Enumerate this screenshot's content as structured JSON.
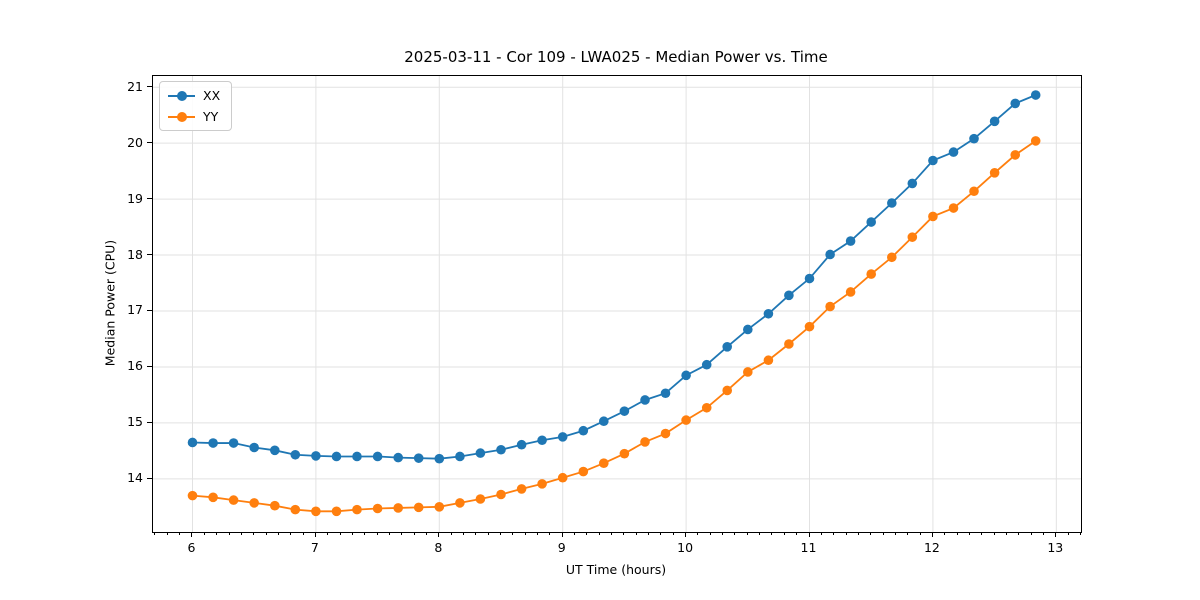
{
  "chart_data": {
    "type": "line",
    "title": "2025-03-11 - Cor 109 - LWA025 - Median Power vs. Time",
    "xlabel": "UT Time (hours)",
    "ylabel": "Median Power (CPU)",
    "xlim": [
      5.68,
      13.2
    ],
    "ylim": [
      13.05,
      21.2
    ],
    "xticks": [
      6,
      7,
      8,
      9,
      10,
      11,
      12,
      13
    ],
    "yticks": [
      14,
      15,
      16,
      17,
      18,
      19,
      20,
      21
    ],
    "x_minor_tick_step": 0.1,
    "grid": true,
    "grid_color": "#e2e2e2",
    "legend_position": "upper-left",
    "x": [
      6.0,
      6.167,
      6.333,
      6.5,
      6.667,
      6.833,
      7.0,
      7.167,
      7.333,
      7.5,
      7.667,
      7.833,
      8.0,
      8.167,
      8.333,
      8.5,
      8.667,
      8.833,
      9.0,
      9.167,
      9.333,
      9.5,
      9.667,
      9.833,
      10.0,
      10.167,
      10.333,
      10.5,
      10.667,
      10.833,
      11.0,
      11.167,
      11.333,
      11.5,
      11.667,
      11.833,
      12.0,
      12.167,
      12.333,
      12.5,
      12.667,
      12.833
    ],
    "series": [
      {
        "name": "XX",
        "color": "#1f77b4",
        "values": [
          14.65,
          14.64,
          14.64,
          14.56,
          14.51,
          14.43,
          14.41,
          14.4,
          14.4,
          14.4,
          14.38,
          14.37,
          14.36,
          14.4,
          14.46,
          14.52,
          14.61,
          14.69,
          14.75,
          14.86,
          15.03,
          15.21,
          15.41,
          15.53,
          15.85,
          16.04,
          16.36,
          16.67,
          16.95,
          17.28,
          17.58,
          18.01,
          18.25,
          18.59,
          18.93,
          19.28,
          19.69,
          19.84,
          20.08,
          20.39,
          20.71,
          20.86
        ]
      },
      {
        "name": "YY",
        "color": "#ff7f0e",
        "values": [
          13.7,
          13.67,
          13.62,
          13.57,
          13.52,
          13.45,
          13.42,
          13.42,
          13.45,
          13.47,
          13.48,
          13.49,
          13.5,
          13.57,
          13.64,
          13.72,
          13.82,
          13.91,
          14.02,
          14.13,
          14.28,
          14.45,
          14.66,
          14.81,
          15.05,
          15.27,
          15.58,
          15.91,
          16.12,
          16.41,
          16.72,
          17.08,
          17.34,
          17.66,
          17.96,
          18.32,
          18.69,
          18.84,
          19.14,
          19.47,
          19.79,
          20.04
        ]
      }
    ]
  }
}
